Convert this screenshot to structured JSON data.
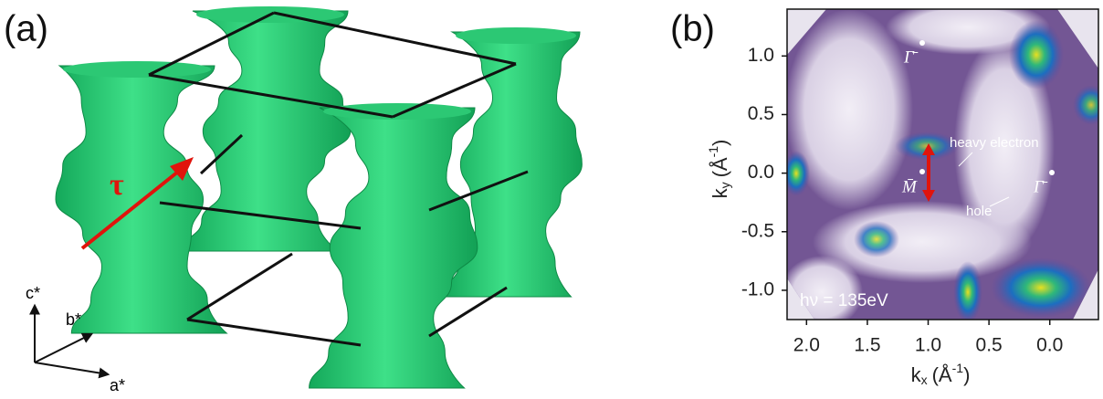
{
  "panel_a": {
    "label": "(a)",
    "tau": "τ",
    "axes": {
      "c": "c*",
      "b": "b*",
      "a": "a*"
    }
  },
  "panel_b": {
    "label": "(b)",
    "xlim": [
      2.16,
      -0.4
    ],
    "ylim": [
      -1.25,
      1.4
    ],
    "xticks": [
      {
        "value": 2,
        "label": "2.0"
      },
      {
        "value": 1.5,
        "label": "1.5"
      },
      {
        "value": 1,
        "label": "1.0"
      },
      {
        "value": 0.5,
        "label": "0.5"
      },
      {
        "value": 0,
        "label": "0.0"
      }
    ],
    "yticks": [
      {
        "value": 1,
        "label": "1.0"
      },
      {
        "value": 0.5,
        "label": "0.5"
      },
      {
        "value": 0,
        "label": "0.0"
      },
      {
        "value": -0.5,
        "label": "-0.5"
      },
      {
        "value": -1,
        "label": "-1.0"
      }
    ],
    "x_label": {
      "k": "k",
      "sub": "x",
      "unit": "(Å",
      "exp": "-1",
      "close": ")"
    },
    "y_label": {
      "k": "k",
      "sub": "y",
      "unit": "(Å",
      "exp": "-1",
      "close": ")"
    },
    "annotations": {
      "gamma_top": "Γ̄",
      "gamma_right": "Γ̄",
      "m": "M̄",
      "heavy": "heavy electron",
      "hole": "hole",
      "photon": "hν = 135eV"
    }
  }
}
